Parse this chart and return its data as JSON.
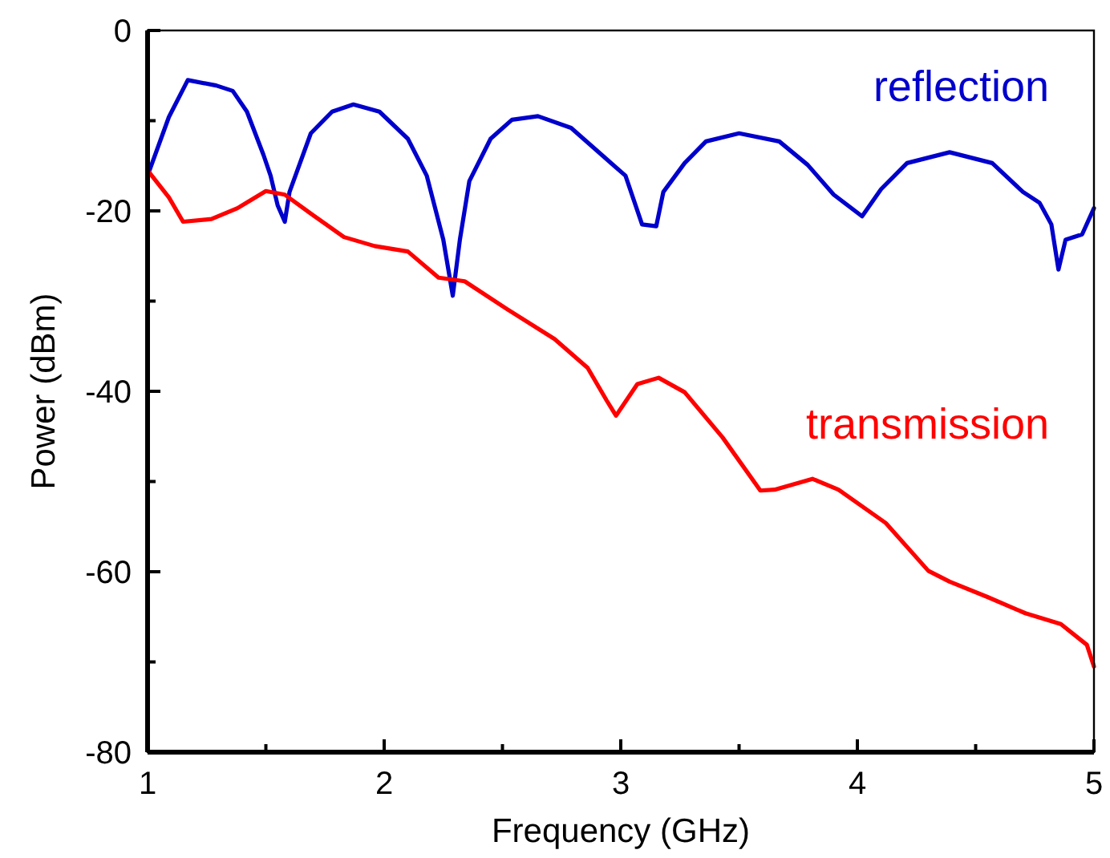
{
  "chart_data": {
    "type": "line",
    "xlabel": "Frequency (GHz)",
    "ylabel": "Power (dBm)",
    "xlim": [
      1,
      5
    ],
    "ylim": [
      -80,
      0
    ],
    "xticks": [
      1,
      2,
      3,
      4,
      5
    ],
    "yticks": [
      -80,
      -60,
      -40,
      -20,
      0
    ],
    "grid": false,
    "marker": "none",
    "line_style": "solid",
    "series": [
      {
        "name": "reflection",
        "color": "#0000cc",
        "x": [
          1.0,
          1.09,
          1.17,
          1.29,
          1.36,
          1.42,
          1.49,
          1.52,
          1.55,
          1.58,
          1.6,
          1.69,
          1.78,
          1.87,
          1.98,
          2.1,
          2.18,
          2.25,
          2.29,
          2.32,
          2.36,
          2.45,
          2.54,
          2.65,
          2.79,
          2.92,
          3.02,
          3.09,
          3.15,
          3.18,
          3.27,
          3.36,
          3.5,
          3.67,
          3.79,
          3.9,
          4.02,
          4.1,
          4.21,
          4.39,
          4.57,
          4.7,
          4.77,
          4.82,
          4.85,
          4.88,
          4.95,
          5.0
        ],
        "values": [
          -16.1,
          -9.6,
          -5.5,
          -6.1,
          -6.7,
          -9.0,
          -13.8,
          -16.1,
          -19.4,
          -21.2,
          -17.9,
          -11.4,
          -9.0,
          -8.2,
          -9.0,
          -12.0,
          -16.1,
          -23.2,
          -29.4,
          -23.2,
          -16.7,
          -12.0,
          -9.9,
          -9.5,
          -10.8,
          -13.8,
          -16.1,
          -21.5,
          -21.7,
          -17.9,
          -14.7,
          -12.3,
          -11.4,
          -12.3,
          -14.9,
          -18.2,
          -20.6,
          -17.6,
          -14.7,
          -13.5,
          -14.7,
          -17.9,
          -19.1,
          -21.5,
          -26.5,
          -23.2,
          -22.6,
          -19.7
        ]
      },
      {
        "name": "transmission",
        "color": "#ff0000",
        "x": [
          1.0,
          1.09,
          1.15,
          1.27,
          1.38,
          1.5,
          1.58,
          1.69,
          1.83,
          1.96,
          2.1,
          2.23,
          2.34,
          2.52,
          2.72,
          2.86,
          2.94,
          2.98,
          3.07,
          3.16,
          3.27,
          3.43,
          3.59,
          3.65,
          3.81,
          3.92,
          4.12,
          4.3,
          4.39,
          4.55,
          4.71,
          4.86,
          4.97,
          5.0
        ],
        "values": [
          -15.5,
          -18.5,
          -21.2,
          -20.9,
          -19.7,
          -17.8,
          -18.2,
          -20.3,
          -22.9,
          -23.9,
          -24.5,
          -27.4,
          -27.8,
          -30.9,
          -34.2,
          -37.4,
          -41.0,
          -42.7,
          -39.2,
          -38.5,
          -40.1,
          -45.1,
          -51.0,
          -50.9,
          -49.7,
          -50.9,
          -54.6,
          -59.9,
          -61.1,
          -62.8,
          -64.6,
          -65.8,
          -68.1,
          -70.5
        ]
      }
    ]
  }
}
